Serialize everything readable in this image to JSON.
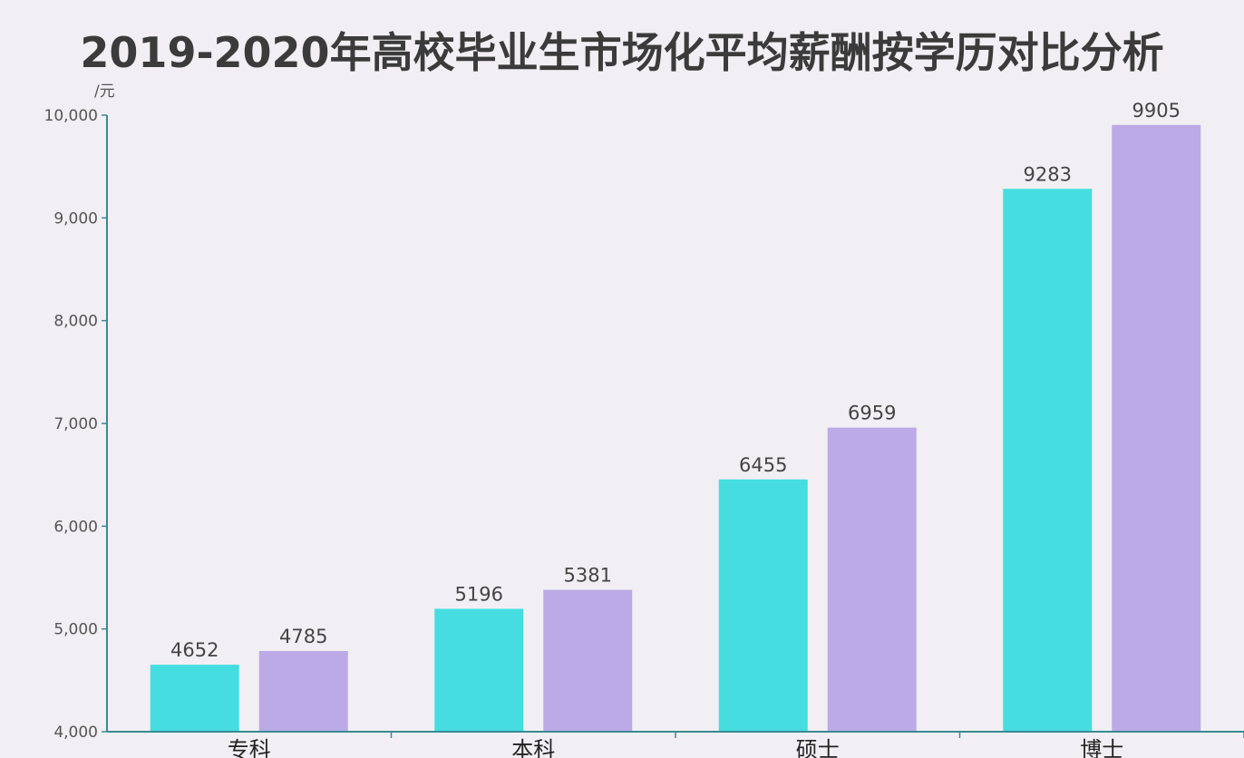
{
  "chart_data": {
    "type": "bar",
    "title": "2019-2020年高校毕业生市场化平均薪酬按学历对比分析",
    "ylabel": "/元",
    "xlabel": "",
    "categories": [
      "专科",
      "本科",
      "硕士",
      "博士"
    ],
    "series": [
      {
        "values": [
          4652,
          5196,
          6455,
          9283
        ],
        "color": "#45dde0"
      },
      {
        "values": [
          4785,
          5381,
          6959,
          9905
        ],
        "color": "#bcaae6"
      }
    ],
    "ylim": [
      4000,
      10000
    ],
    "yticks": [
      4000,
      5000,
      6000,
      7000,
      8000,
      9000,
      10000
    ],
    "ytick_labels": [
      "4,000",
      "5,000",
      "6,000",
      "7,000",
      "8,000",
      "9,000",
      "10,000"
    ],
    "grid": false,
    "legend": "none"
  }
}
